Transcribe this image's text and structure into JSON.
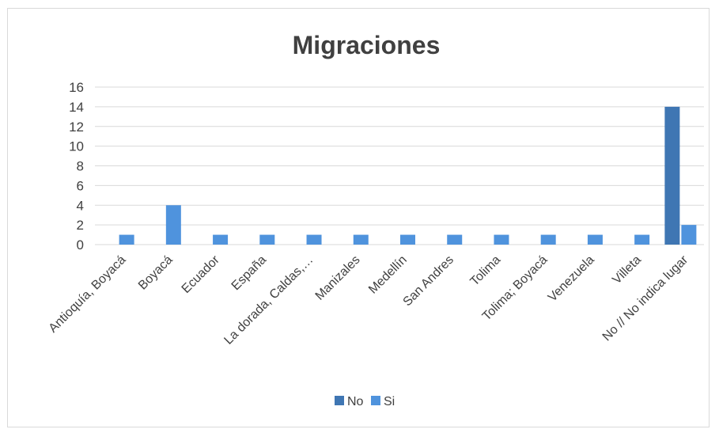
{
  "chart_data": {
    "type": "bar",
    "title": "Migraciones",
    "xlabel": "",
    "ylabel": "",
    "ylim": [
      0,
      16
    ],
    "yticks": [
      0,
      2,
      4,
      6,
      8,
      10,
      12,
      14,
      16
    ],
    "grid": true,
    "legend_position": "bottom",
    "categories": [
      "Antioquía, Boyacá",
      "Boyacá",
      "Ecuador",
      "España",
      "La dorada, Caldas,…",
      "Manizales",
      "Medellín",
      "San Andres",
      "Tolima",
      "Tolima; Boyacá",
      "Venezuela",
      "Villeta",
      "No // No indica lugar"
    ],
    "series": [
      {
        "name": "No",
        "color": "#3f76b3",
        "values": [
          0,
          0,
          0,
          0,
          0,
          0,
          0,
          0,
          0,
          0,
          0,
          0,
          14
        ]
      },
      {
        "name": "Si",
        "color": "#4f93dd",
        "values": [
          1,
          4,
          1,
          1,
          1,
          1,
          1,
          1,
          1,
          1,
          1,
          1,
          2
        ]
      }
    ]
  }
}
